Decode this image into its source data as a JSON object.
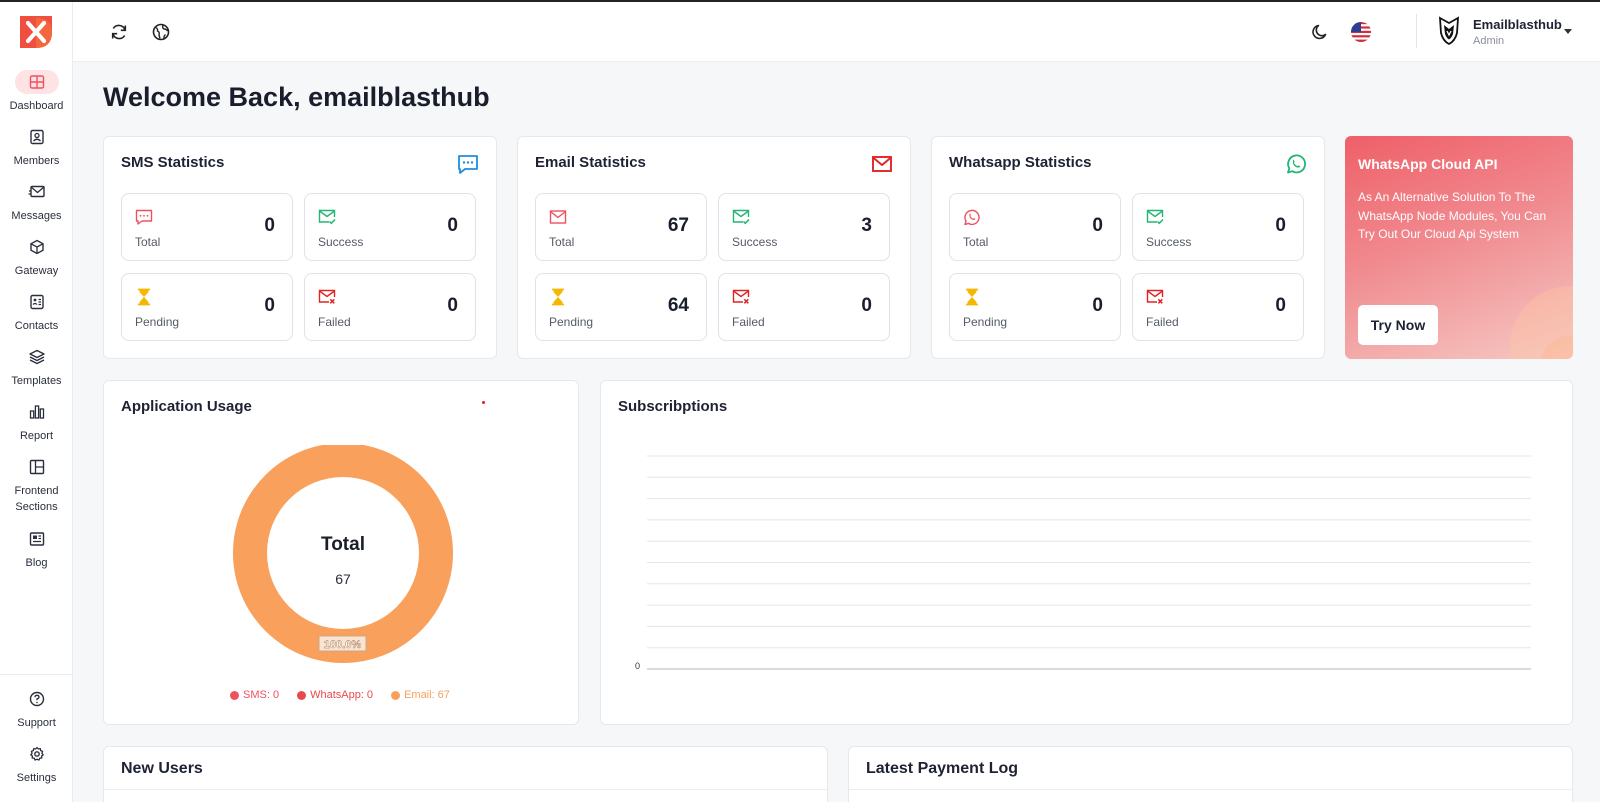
{
  "header": {
    "user_name": "Emailblasthub",
    "user_role": "Admin"
  },
  "sidebar": {
    "items": [
      {
        "label": "Dashboard",
        "icon": "grid-icon",
        "active": true
      },
      {
        "label": "Members",
        "icon": "user-card-icon"
      },
      {
        "label": "Messages",
        "icon": "send-mail-icon"
      },
      {
        "label": "Gateway",
        "icon": "cube-icon"
      },
      {
        "label": "Contacts",
        "icon": "contacts-icon"
      },
      {
        "label": "Templates",
        "icon": "layers-icon"
      },
      {
        "label": "Report",
        "icon": "bar-chart-icon"
      },
      {
        "label": "Frontend Sections",
        "icon": "layout-icon"
      },
      {
        "label": "Blog",
        "icon": "newspaper-icon"
      }
    ],
    "bottom": [
      {
        "label": "Support",
        "icon": "help-circle-icon"
      },
      {
        "label": "Settings",
        "icon": "gear-icon"
      }
    ]
  },
  "welcome": "Welcome Back, emailblasthub",
  "sms": {
    "title": "SMS Statistics",
    "total_label": "Total",
    "total": "0",
    "success_label": "Success",
    "success": "0",
    "pending_label": "Pending",
    "pending": "0",
    "failed_label": "Failed",
    "failed": "0"
  },
  "email": {
    "title": "Email Statistics",
    "total_label": "Total",
    "total": "67",
    "success_label": "Success",
    "success": "3",
    "pending_label": "Pending",
    "pending": "64",
    "failed_label": "Failed",
    "failed": "0"
  },
  "whatsapp": {
    "title": "Whatsapp Statistics",
    "total_label": "Total",
    "total": "0",
    "success_label": "Success",
    "success": "0",
    "pending_label": "Pending",
    "pending": "0",
    "failed_label": "Failed",
    "failed": "0"
  },
  "promo": {
    "title": "WhatsApp Cloud API",
    "description": "As An Alternative Solution To The WhatsApp Node Modules, You Can Try Out Our Cloud Api System",
    "button": "Try Now"
  },
  "usage": {
    "title": "Application Usage",
    "center_label": "Total",
    "center_value": "67",
    "slice_label": "100.0%",
    "legend": [
      {
        "label": "SMS: 0",
        "color": "#ef5060"
      },
      {
        "label": "WhatsApp: 0",
        "color": "#e84a4a"
      },
      {
        "label": "Email: 67",
        "color": "#f8a05c"
      }
    ]
  },
  "chart_data": [
    {
      "type": "pie",
      "categories": [
        "SMS",
        "WhatsApp",
        "Email"
      ],
      "values": [
        0,
        0,
        67
      ],
      "colors": [
        "#ef5060",
        "#e84a4a",
        "#f8a05c"
      ],
      "title": "Application Usage",
      "legend": "bottom"
    },
    {
      "type": "line",
      "title": "Subscribptions",
      "series": [],
      "yticks": [
        "0"
      ],
      "grid": true
    }
  ],
  "subscriptions": {
    "title": "Subscribptions",
    "ytick": "0",
    "gridlines": 11
  },
  "new_users": {
    "title": "New Users"
  },
  "payment_log": {
    "title": "Latest Payment Log"
  },
  "colors": {
    "brand": "#f0444f",
    "orange": "#f8a05c",
    "success": "#22b573",
    "pending": "#f5b800",
    "failed": "#e02424"
  }
}
